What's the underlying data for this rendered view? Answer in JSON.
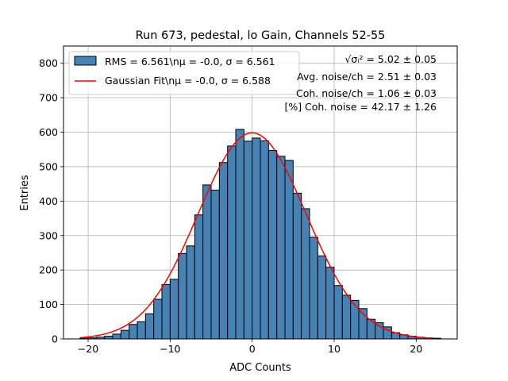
{
  "chart_data": {
    "type": "bar",
    "title": "Run 673, pedestal, lo Gain, Channels 52-55",
    "xlabel": "ADC Counts",
    "ylabel": "Entries",
    "xlim": [
      -23,
      25
    ],
    "ylim": [
      0,
      850
    ],
    "grid": true,
    "x_ticks": [
      -20,
      -10,
      0,
      10,
      20
    ],
    "x_tick_labels": [
      "−20",
      "−10",
      "0",
      "10",
      "20"
    ],
    "y_ticks": [
      0,
      100,
      200,
      300,
      400,
      500,
      600,
      700,
      800
    ],
    "y_tick_labels": [
      "0",
      "100",
      "200",
      "300",
      "400",
      "500",
      "600",
      "700",
      "800"
    ],
    "histogram": {
      "name": "RMS",
      "color": "#4682b4",
      "bin_width": 1,
      "bin_left_edges": [
        -21,
        -20,
        -19,
        -18,
        -17,
        -16,
        -15,
        -14,
        -13,
        -12,
        -11,
        -10,
        -9,
        -8,
        -7,
        -6,
        -5,
        -4,
        -3,
        -2,
        -1,
        0,
        1,
        2,
        3,
        4,
        5,
        6,
        7,
        8,
        9,
        10,
        11,
        12,
        13,
        14,
        15,
        16,
        17,
        18,
        19,
        20,
        21,
        22
      ],
      "counts": [
        2,
        3,
        5,
        8,
        14,
        25,
        42,
        50,
        73,
        115,
        158,
        173,
        248,
        270,
        360,
        447,
        432,
        512,
        560,
        608,
        574,
        583,
        575,
        547,
        530,
        518,
        423,
        378,
        295,
        241,
        208,
        155,
        127,
        112,
        88,
        57,
        47,
        35,
        18,
        12,
        8,
        5,
        3,
        2
      ]
    },
    "fit": {
      "name": "Gaussian Fit",
      "color": "#ff0000",
      "mu": -0.0,
      "sigma": 6.588,
      "amplitude": 598,
      "x_range": [
        -21,
        22
      ]
    },
    "legend": {
      "position": "top-left",
      "entries": [
        "RMS = 6.561\\nμ = -0.0, σ = 6.561",
        "Gaussian Fit\\nμ = -0.0, σ = 6.588"
      ]
    },
    "annotations": [
      "√σᵢ² = 5.02 ± 0.05",
      "Avg. noise/ch = 2.51 ± 0.03",
      "Coh. noise/ch = 1.06 ± 0.03",
      "[%] Coh. noise = 42.17 ± 1.26"
    ]
  }
}
